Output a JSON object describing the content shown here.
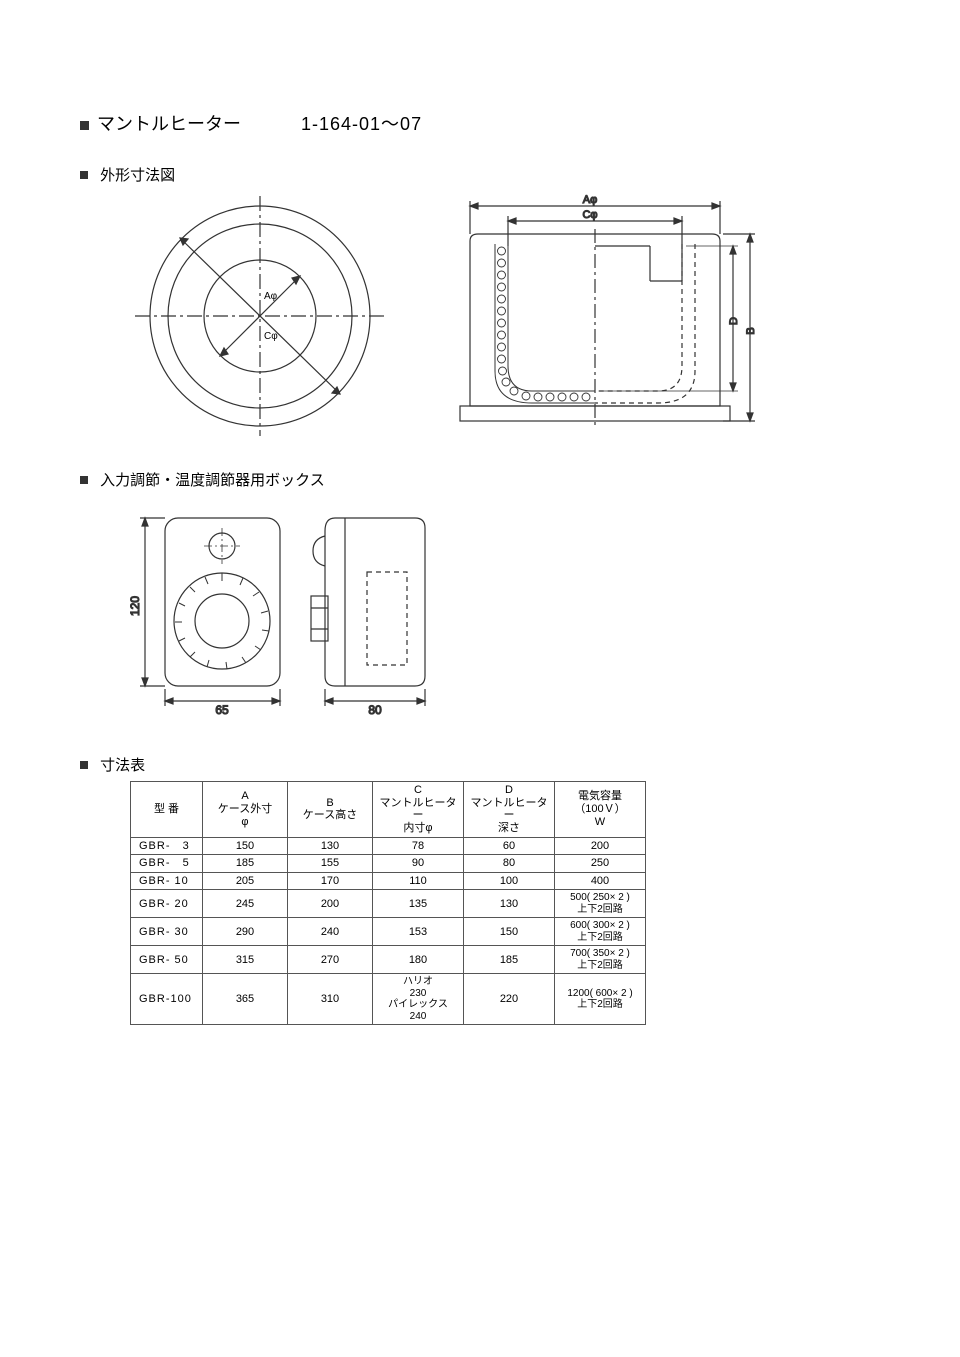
{
  "page": {
    "title": "マントルヒーター",
    "item_code": "1-164-01～07",
    "section_dims_diagram": "外形寸法図",
    "section_box": "入力調節・温度調節器用ボックス",
    "section_table": "寸法表"
  },
  "diagram_top": {
    "label_A": "Aφ",
    "label_C": "Cφ",
    "label_B": "B",
    "label_D": "D",
    "circle_label_A": "Aφ",
    "circle_label_C": "Cφ"
  },
  "box_diagram": {
    "height": "120",
    "front_width": "65",
    "side_width": "80"
  },
  "table": {
    "headers": {
      "model": "型 番",
      "A": [
        "A",
        "ケース外寸",
        "φ"
      ],
      "B": [
        "B",
        "ケース高さ"
      ],
      "C": [
        "C",
        "マントルヒーター",
        "内寸φ"
      ],
      "D": [
        "D",
        "マントルヒーター",
        "深さ"
      ],
      "E": [
        "電気容量",
        "（100Ｖ）",
        "W"
      ]
    },
    "rows": [
      {
        "model": "GBR-   3",
        "A": "150",
        "B": "130",
        "C": "78",
        "D": "60",
        "E": "200"
      },
      {
        "model": "GBR-   5",
        "A": "185",
        "B": "155",
        "C": "90",
        "D": "80",
        "E": "250"
      },
      {
        "model": "GBR- 10",
        "A": "205",
        "B": "170",
        "C": "110",
        "D": "100",
        "E": "400"
      },
      {
        "model": "GBR- 20",
        "A": "245",
        "B": "200",
        "C": "135",
        "D": "130",
        "E": "500( 250× 2 )\n上下2回路"
      },
      {
        "model": "GBR- 30",
        "A": "290",
        "B": "240",
        "C": "153",
        "D": "150",
        "E": "600( 300× 2 )\n上下2回路"
      },
      {
        "model": "GBR- 50",
        "A": "315",
        "B": "270",
        "C": "180",
        "D": "185",
        "E": "700( 350× 2 )\n上下2回路"
      },
      {
        "model": "GBR-100",
        "A": "365",
        "B": "310",
        "C": "ハリオ\n230\nパイレックス\n240",
        "D": "220",
        "E": "1200( 600× 2 )\n上下2回路"
      }
    ]
  },
  "colors": {
    "stroke": "#333333",
    "text": "#222222",
    "bg": "#ffffff"
  }
}
